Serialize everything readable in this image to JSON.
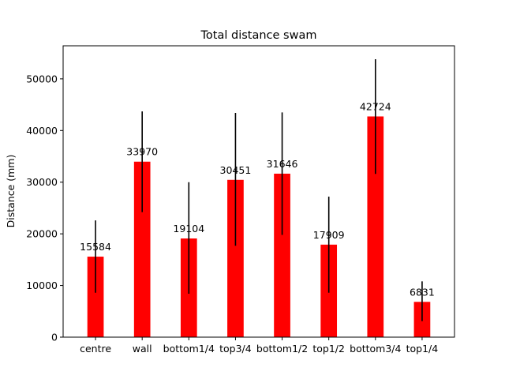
{
  "chart_data": {
    "type": "bar",
    "title": "Total distance swam",
    "xlabel": "",
    "ylabel": "Distance (mm)",
    "categories": [
      "centre",
      "wall",
      "bottom1/4",
      "top3/4",
      "bottom1/2",
      "top1/2",
      "bottom3/4",
      "top1/4"
    ],
    "values": [
      15584,
      33970,
      19104,
      30451,
      31646,
      17909,
      42724,
      6831
    ],
    "error_low": [
      8600,
      24200,
      8400,
      17700,
      19800,
      8600,
      31600,
      3100
    ],
    "error_high": [
      22600,
      43700,
      30000,
      43400,
      43500,
      27200,
      53800,
      10800
    ],
    "data_labels": [
      "15584",
      "33970",
      "19104",
      "30451",
      "31646",
      "17909",
      "42724",
      "6831"
    ],
    "ylim": [
      0,
      56400
    ],
    "yticks": [
      0,
      10000,
      20000,
      30000,
      40000,
      50000
    ],
    "ytick_labels": [
      "0",
      "10000",
      "20000",
      "30000",
      "40000",
      "50000"
    ],
    "bar_color": "#ff0000",
    "error_color": "#000000",
    "grid": false,
    "legend": "none"
  }
}
